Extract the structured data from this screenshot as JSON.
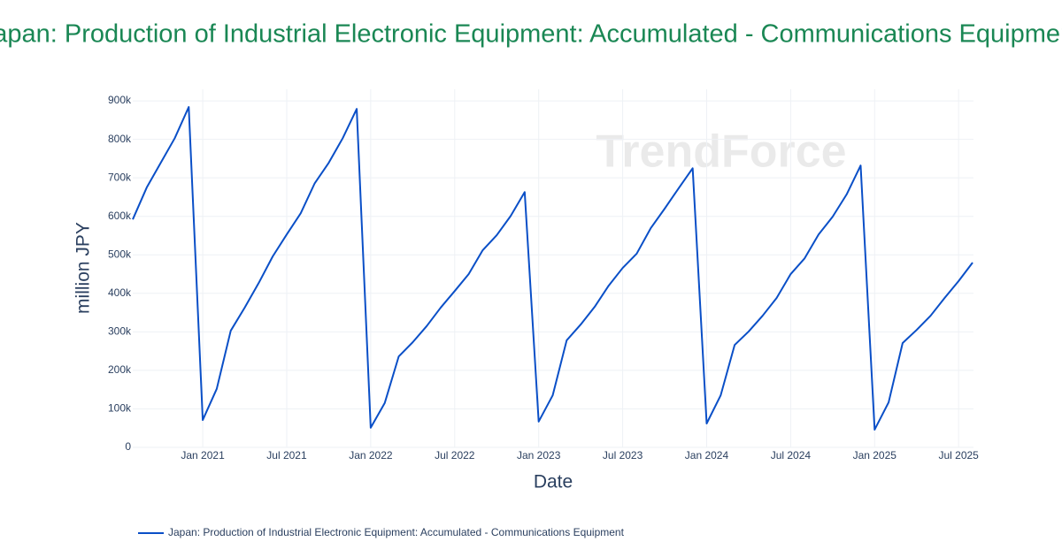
{
  "chart_data": {
    "type": "line",
    "title": "Japan: Production of Industrial Electronic Equipment: Accumulated - Communications Equipment",
    "x_label": "Date",
    "y_label": "million JPY",
    "watermark": "TrendForce",
    "x": [
      "2020-08",
      "2020-09",
      "2020-10",
      "2020-11",
      "2020-12",
      "2021-01",
      "2021-02",
      "2021-03",
      "2021-04",
      "2021-05",
      "2021-06",
      "2021-07",
      "2021-08",
      "2021-09",
      "2021-10",
      "2021-11",
      "2021-12",
      "2022-01",
      "2022-02",
      "2022-03",
      "2022-04",
      "2022-05",
      "2022-06",
      "2022-07",
      "2022-08",
      "2022-09",
      "2022-10",
      "2022-11",
      "2022-12",
      "2023-01",
      "2023-02",
      "2023-03",
      "2023-04",
      "2023-05",
      "2023-06",
      "2023-07",
      "2023-08",
      "2023-09",
      "2023-10",
      "2023-11",
      "2023-12",
      "2024-01",
      "2024-02",
      "2024-03",
      "2024-04",
      "2024-05",
      "2024-06",
      "2024-07",
      "2024-08",
      "2024-09",
      "2024-10",
      "2024-11",
      "2024-12",
      "2025-01",
      "2025-02",
      "2025-03",
      "2025-04",
      "2025-05",
      "2025-06",
      "2025-07",
      "2025-08"
    ],
    "series": [
      {
        "name": "Japan: Production of Industrial Electronic Equipment: Accumulated - Communications Equipment",
        "color": "#0a4fc7",
        "values": [
          592000,
          675000,
          739000,
          803000,
          884000,
          71000,
          152000,
          303000,
          363000,
          427000,
          496000,
          553000,
          608000,
          686000,
          739000,
          803000,
          879000,
          51000,
          115000,
          236000,
          273000,
          315000,
          363000,
          406000,
          450000,
          512000,
          551000,
          601000,
          663000,
          67000,
          135000,
          278000,
          319000,
          365000,
          420000,
          466000,
          503000,
          569000,
          620000,
          673000,
          725000,
          62000,
          135000,
          266000,
          301000,
          342000,
          388000,
          450000,
          491000,
          553000,
          599000,
          657000,
          732000,
          46000,
          117000,
          271000,
          305000,
          342000,
          388000,
          432000,
          480000
        ]
      }
    ],
    "xlim": [
      "2020-08",
      "2025-08"
    ],
    "xticks": [
      {
        "value": "2021-01",
        "label": "Jan 2021"
      },
      {
        "value": "2021-07",
        "label": "Jul 2021"
      },
      {
        "value": "2022-01",
        "label": "Jan 2022"
      },
      {
        "value": "2022-07",
        "label": "Jul 2022"
      },
      {
        "value": "2023-01",
        "label": "Jan 2023"
      },
      {
        "value": "2023-07",
        "label": "Jul 2023"
      },
      {
        "value": "2024-01",
        "label": "Jan 2024"
      },
      {
        "value": "2024-07",
        "label": "Jul 2024"
      },
      {
        "value": "2025-01",
        "label": "Jan 2025"
      },
      {
        "value": "2025-07",
        "label": "Jul 2025"
      }
    ],
    "ylim": [
      0,
      930000
    ],
    "yticks": [
      0,
      {
        "value": 100000,
        "label": "100k"
      },
      {
        "value": 200000,
        "label": "200k"
      },
      {
        "value": 300000,
        "label": "300k"
      },
      {
        "value": 400000,
        "label": "400k"
      },
      {
        "value": 500000,
        "label": "500k"
      },
      {
        "value": 600000,
        "label": "600k"
      },
      {
        "value": 700000,
        "label": "700k"
      },
      {
        "value": 800000,
        "label": "800k"
      },
      {
        "value": 900000,
        "label": "900k"
      }
    ],
    "grid": true
  }
}
